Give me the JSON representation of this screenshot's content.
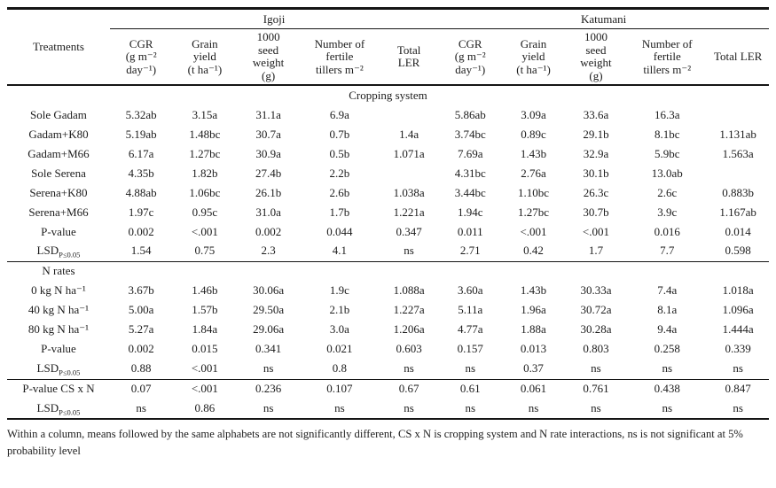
{
  "table": {
    "row_header": "Treatments",
    "site_groups": [
      {
        "label": "Igoji"
      },
      {
        "label": "Katumani"
      }
    ],
    "columns": [
      "CGR\n(g m⁻²\nday⁻¹)",
      "Grain\nyield\n(t ha⁻¹)",
      "1000\nseed\nweight\n(g)",
      "Number of\nfertile\ntillers m⁻²",
      "Total\nLER",
      "CGR\n(g m⁻²\nday⁻¹)",
      "Grain\nyield\n(t ha⁻¹)",
      "1000\nseed\nweight\n(g)",
      "Number of\nfertile\ntillers m⁻²",
      "Total LER"
    ],
    "sections": [
      {
        "title": "Cropping system",
        "title_placement": "center",
        "border_top": false,
        "rows": [
          {
            "label": "Sole Gadam",
            "cells": [
              "5.32ab",
              "3.15a",
              "31.1a",
              "6.9a",
              "",
              "5.86ab",
              "3.09a",
              "33.6a",
              "16.3a",
              ""
            ]
          },
          {
            "label": "Gadam+K80",
            "cells": [
              "5.19ab",
              "1.48bc",
              "30.7a",
              "0.7b",
              "1.4a",
              "3.74bc",
              "0.89c",
              "29.1b",
              "8.1bc",
              "1.131ab"
            ]
          },
          {
            "label": "Gadam+M66",
            "cells": [
              "6.17a",
              "1.27bc",
              "30.9a",
              "0.5b",
              "1.071a",
              "7.69a",
              "1.43b",
              "32.9a",
              "5.9bc",
              "1.563a"
            ]
          },
          {
            "label": "Sole Serena",
            "cells": [
              "4.35b",
              "1.82b",
              "27.4b",
              "2.2b",
              "",
              "4.31bc",
              "2.76a",
              "30.1b",
              "13.0ab",
              ""
            ]
          },
          {
            "label": "Serena+K80",
            "cells": [
              "4.88ab",
              "1.06bc",
              "26.1b",
              "2.6b",
              "1.038a",
              "3.44bc",
              "1.10bc",
              "26.3c",
              "2.6c",
              "0.883b"
            ]
          },
          {
            "label": "Serena+M66",
            "cells": [
              "1.97c",
              "0.95c",
              "31.0a",
              "1.7b",
              "1.221a",
              "1.94c",
              "1.27bc",
              "30.7b",
              "3.9c",
              "1.167ab"
            ]
          },
          {
            "label": "P-value",
            "cells": [
              "0.002",
              "<.001",
              "0.002",
              "0.044",
              "0.347",
              "0.011",
              "<.001",
              "<.001",
              "0.016",
              "0.014"
            ]
          },
          {
            "label": "LSD",
            "label_sub": "P≤0.05",
            "cells": [
              "1.54",
              "0.75",
              "2.3",
              "4.1",
              "ns",
              "2.71",
              "0.42",
              "1.7",
              "7.7",
              "0.598"
            ]
          }
        ]
      },
      {
        "title": "N rates",
        "title_placement": "label",
        "border_top": true,
        "rows": [
          {
            "label": "0 kg N ha⁻¹",
            "cells": [
              "3.67b",
              "1.46b",
              "30.06a",
              "1.9c",
              "1.088a",
              "3.60a",
              "1.43b",
              "30.33a",
              "7.4a",
              "1.018a"
            ]
          },
          {
            "label": "40 kg N ha⁻¹",
            "cells": [
              "5.00a",
              "1.57b",
              "29.50a",
              "2.1b",
              "1.227a",
              "5.11a",
              "1.96a",
              "30.72a",
              "8.1a",
              "1.096a"
            ]
          },
          {
            "label": "80 kg N ha⁻¹",
            "cells": [
              "5.27a",
              "1.84a",
              "29.06a",
              "3.0a",
              "1.206a",
              "4.77a",
              "1.88a",
              "30.28a",
              "9.4a",
              "1.444a"
            ]
          },
          {
            "label": "P-value",
            "cells": [
              "0.002",
              "0.015",
              "0.341",
              "0.021",
              "0.603",
              "0.157",
              "0.013",
              "0.803",
              "0.258",
              "0.339"
            ]
          },
          {
            "label": "LSD",
            "label_sub": "P≤0.05",
            "cells": [
              "0.88",
              "<.001",
              "ns",
              "0.8",
              "ns",
              "ns",
              "0.37",
              "ns",
              "ns",
              "ns"
            ]
          }
        ]
      },
      {
        "border_top": true,
        "rows": [
          {
            "label": "P-value CS x N",
            "cells": [
              "0.07",
              "<.001",
              "0.236",
              "0.107",
              "0.67",
              "0.61",
              "0.061",
              "0.761",
              "0.438",
              "0.847"
            ]
          },
          {
            "label": "LSD",
            "label_sub": "P≤0.05",
            "cells": [
              "ns",
              "0.86",
              "ns",
              "ns",
              "ns",
              "ns",
              "ns",
              "ns",
              "ns",
              "ns"
            ]
          }
        ]
      }
    ],
    "footnote": "Within a column, means followed by the same alphabets are not significantly different, CS x N is cropping system and N rate interactions, ns is not significant at 5% probability level"
  }
}
